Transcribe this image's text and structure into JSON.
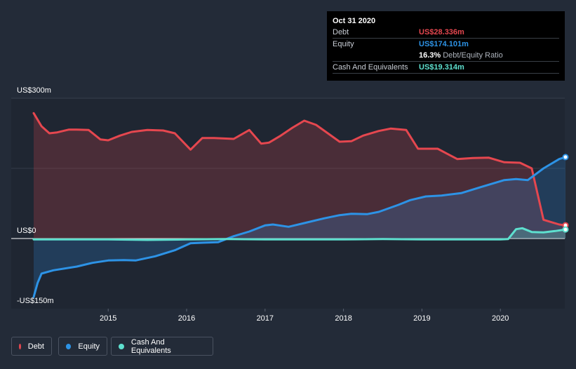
{
  "tooltip": {
    "date": "Oct 31 2020",
    "rows": [
      {
        "label": "Debt",
        "value": "US$28.336m",
        "color": "#e5474f"
      },
      {
        "label": "Equity",
        "value": "US$174.101m",
        "color": "#2d93e6"
      },
      {
        "label": "",
        "value": "16.3%",
        "suffix": "Debt/Equity Ratio"
      },
      {
        "label": "Cash And Equivalents",
        "value": "US$19.314m",
        "color": "#5ee0cf"
      }
    ]
  },
  "legend": [
    {
      "label": "Debt",
      "color": "#e5474f"
    },
    {
      "label": "Equity",
      "color": "#2d93e6"
    },
    {
      "label": "Cash And Equivalents",
      "color": "#5ee0cf"
    }
  ],
  "chart_data": {
    "type": "area",
    "title": "",
    "xlabel": "",
    "ylabel": "",
    "y_tick_labels": [
      "US$300m",
      "US$0",
      "-US$150m"
    ],
    "x_tick_labels": [
      "2015",
      "2016",
      "2017",
      "2018",
      "2019",
      "2020"
    ],
    "ylim": [
      -150,
      300
    ],
    "xlim": [
      2014.05,
      2020.85
    ],
    "grid": true,
    "legend_position": "bottom-left",
    "series": [
      {
        "name": "Debt",
        "color": "#e5474f",
        "points": [
          [
            2014.05,
            268
          ],
          [
            2014.15,
            240
          ],
          [
            2014.25,
            225
          ],
          [
            2014.35,
            227
          ],
          [
            2014.5,
            233
          ],
          [
            2014.6,
            233
          ],
          [
            2014.75,
            232
          ],
          [
            2014.9,
            212
          ],
          [
            2015.0,
            210
          ],
          [
            2015.15,
            220
          ],
          [
            2015.3,
            228
          ],
          [
            2015.5,
            232
          ],
          [
            2015.7,
            231
          ],
          [
            2015.85,
            225
          ],
          [
            2016.05,
            190
          ],
          [
            2016.2,
            215
          ],
          [
            2016.35,
            215
          ],
          [
            2016.6,
            213
          ],
          [
            2016.8,
            232
          ],
          [
            2016.95,
            203
          ],
          [
            2017.05,
            205
          ],
          [
            2017.2,
            220
          ],
          [
            2017.35,
            237
          ],
          [
            2017.5,
            252
          ],
          [
            2017.65,
            243
          ],
          [
            2017.8,
            225
          ],
          [
            2017.95,
            207
          ],
          [
            2018.1,
            208
          ],
          [
            2018.25,
            220
          ],
          [
            2018.45,
            230
          ],
          [
            2018.6,
            235
          ],
          [
            2018.8,
            232
          ],
          [
            2018.95,
            192
          ],
          [
            2019.2,
            192
          ],
          [
            2019.45,
            170
          ],
          [
            2019.65,
            172
          ],
          [
            2019.85,
            173
          ],
          [
            2020.05,
            163
          ],
          [
            2020.25,
            162
          ],
          [
            2020.4,
            150
          ],
          [
            2020.55,
            40
          ],
          [
            2020.75,
            30
          ],
          [
            2020.83,
            28.336
          ]
        ]
      },
      {
        "name": "Equity",
        "color": "#2d93e6",
        "points": [
          [
            2014.05,
            -125
          ],
          [
            2014.1,
            -95
          ],
          [
            2014.15,
            -75
          ],
          [
            2014.3,
            -68
          ],
          [
            2014.6,
            -60
          ],
          [
            2014.8,
            -52
          ],
          [
            2015.0,
            -47
          ],
          [
            2015.2,
            -46
          ],
          [
            2015.35,
            -47
          ],
          [
            2015.6,
            -38
          ],
          [
            2015.85,
            -25
          ],
          [
            2016.05,
            -10
          ],
          [
            2016.2,
            -9
          ],
          [
            2016.4,
            -8
          ],
          [
            2016.6,
            5
          ],
          [
            2016.8,
            15
          ],
          [
            2017.0,
            28
          ],
          [
            2017.1,
            30
          ],
          [
            2017.3,
            25
          ],
          [
            2017.5,
            33
          ],
          [
            2017.75,
            43
          ],
          [
            2017.95,
            50
          ],
          [
            2018.1,
            53
          ],
          [
            2018.3,
            52
          ],
          [
            2018.45,
            57
          ],
          [
            2018.7,
            72
          ],
          [
            2018.85,
            82
          ],
          [
            2019.05,
            90
          ],
          [
            2019.25,
            92
          ],
          [
            2019.5,
            97
          ],
          [
            2019.75,
            110
          ],
          [
            2020.05,
            125
          ],
          [
            2020.2,
            127
          ],
          [
            2020.35,
            125
          ],
          [
            2020.55,
            150
          ],
          [
            2020.75,
            170
          ],
          [
            2020.83,
            174.101
          ]
        ]
      },
      {
        "name": "Cash And Equivalents",
        "color": "#5ee0cf",
        "points": [
          [
            2014.05,
            -2
          ],
          [
            2014.5,
            -2
          ],
          [
            2015.0,
            -2
          ],
          [
            2015.5,
            -3
          ],
          [
            2016.0,
            -2
          ],
          [
            2016.5,
            -1
          ],
          [
            2017.0,
            -2
          ],
          [
            2017.5,
            -2
          ],
          [
            2018.0,
            -2
          ],
          [
            2018.5,
            -1
          ],
          [
            2019.0,
            -2
          ],
          [
            2019.5,
            -2
          ],
          [
            2020.0,
            -2
          ],
          [
            2020.1,
            -1
          ],
          [
            2020.2,
            20
          ],
          [
            2020.28,
            22
          ],
          [
            2020.4,
            14
          ],
          [
            2020.55,
            13
          ],
          [
            2020.7,
            16
          ],
          [
            2020.83,
            19.314
          ]
        ]
      }
    ]
  }
}
